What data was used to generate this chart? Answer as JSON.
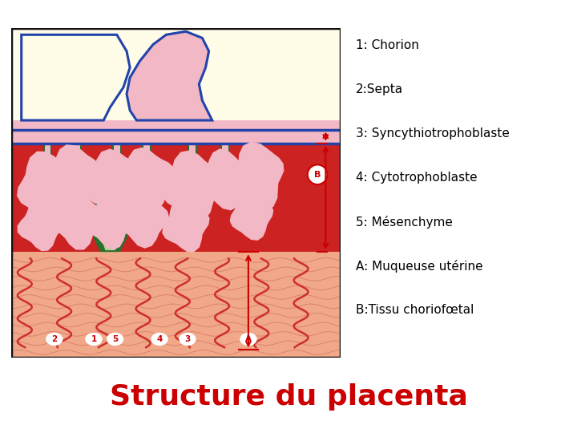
{
  "title": "Structure du placenta",
  "title_color": "#cc0000",
  "title_fontsize": 26,
  "bg_color": "#ffffff",
  "legend_lines": [
    "1: Chorion",
    "2:Septa",
    "3: Syncythiotrophoblaste",
    "4: Cytotrophoblaste",
    "5: Mésenchyme",
    "A: Muqueuse utérine",
    "B:Tissu choriofœtal"
  ],
  "legend_fontsize": 11,
  "colors": {
    "amnion_space": "#fffce8",
    "chorion_fill": "#f2b8c6",
    "chorion_border": "#2244aa",
    "red_blood": "#cc2222",
    "villus_dark_green": "#2d6e2d",
    "villus_light_green": "#a8d890",
    "villus_pink": "#f2b8c6",
    "septa_green": "#2d6e2d",
    "uterine_fill": "#f0a888",
    "uterine_lines": "#cc6655",
    "gland_red": "#cc2222",
    "label_bg": "#ffffff",
    "label_text": "#cc0000",
    "arrow_color": "#cc0000",
    "border_color": "#111111"
  }
}
